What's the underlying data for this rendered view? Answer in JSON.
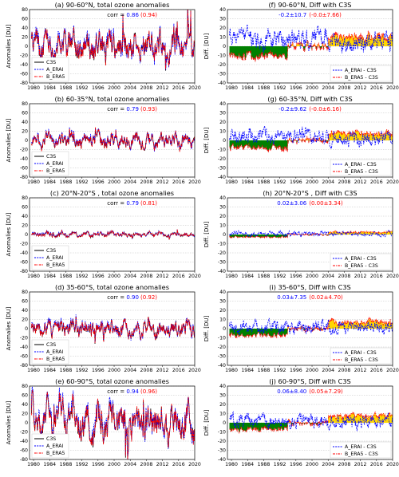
{
  "colors": {
    "c3s": "#000000",
    "erai": "#0000ff",
    "era5": "#ff0000",
    "pos_fill": "#ffd700",
    "neg_fill": "#008000",
    "grid": "#b0b0b0"
  },
  "panels_left_ylabel": "Anomalies [DU]",
  "panels_right_ylabel": "Diff. [DU]",
  "xticks": [
    "1980",
    "1984",
    "1988",
    "1992",
    "1996",
    "2000",
    "2004",
    "2008",
    "2012",
    "2016",
    "2020"
  ],
  "yticks": [
    "80",
    "60",
    "40",
    "20",
    "0",
    "-20",
    "-40",
    "-60",
    "-80"
  ],
  "yticks_diff": [
    "40",
    "30",
    "20",
    "10",
    "0",
    "-10",
    "-20",
    "-30",
    "-40"
  ],
  "legend_left": [
    "C3S",
    "A_ERAI",
    "B_ERA5"
  ],
  "legend_right": [
    "A_ERAI - C3S",
    "B_ERA5 - C3S"
  ],
  "corr_prefix": "corr =",
  "chart_data": [
    {
      "type": "line",
      "id": "a",
      "title": "(a) 90-60°N, total ozone anomalies",
      "ylabel": "Anomalies [DU]",
      "ylim": [
        -80,
        80
      ],
      "xlim": [
        1979,
        2020
      ],
      "corr_erai": "0.86",
      "corr_era5": "(0.94)",
      "series": [
        {
          "name": "C3S"
        },
        {
          "name": "A_ERAI"
        },
        {
          "name": "B_ERA5"
        }
      ]
    },
    {
      "type": "line",
      "id": "b",
      "title": "(b) 60-35°N, total ozone anomalies",
      "ylabel": "Anomalies [DU]",
      "ylim": [
        -80,
        80
      ],
      "xlim": [
        1979,
        2020
      ],
      "corr_erai": "0.79",
      "corr_era5": "(0.93)",
      "series": [
        {
          "name": "C3S"
        },
        {
          "name": "A_ERAI"
        },
        {
          "name": "B_ERA5"
        }
      ]
    },
    {
      "type": "line",
      "id": "c",
      "title": "(c) 20°N-20°S , total ozone anomalies",
      "ylabel": "Anomalies [DU]",
      "ylim": [
        -80,
        80
      ],
      "xlim": [
        1979,
        2020
      ],
      "corr_erai": "0.79",
      "corr_era5": "(0.81)",
      "series": [
        {
          "name": "C3S"
        },
        {
          "name": "A_ERAI"
        },
        {
          "name": "B_ERA5"
        }
      ]
    },
    {
      "type": "line",
      "id": "d",
      "title": "(d) 35-60°S, total ozone anomalies",
      "ylabel": "Anomalies [DU]",
      "ylim": [
        -80,
        80
      ],
      "xlim": [
        1979,
        2020
      ],
      "corr_erai": "0.90",
      "corr_era5": "(0.92)",
      "series": [
        {
          "name": "C3S"
        },
        {
          "name": "A_ERAI"
        },
        {
          "name": "B_ERA5"
        }
      ]
    },
    {
      "type": "line",
      "id": "e",
      "title": "(e) 60-90°S, total ozone anomalies",
      "ylabel": "Anomalies [DU]",
      "ylim": [
        -80,
        80
      ],
      "xlim": [
        1979,
        2020
      ],
      "corr_erai": "0.94",
      "corr_era5": "(0.96)",
      "series": [
        {
          "name": "C3S"
        },
        {
          "name": "A_ERAI"
        },
        {
          "name": "B_ERA5"
        }
      ]
    },
    {
      "type": "line",
      "id": "f",
      "title": "(f) 90-60°N, Diff with C3S",
      "ylabel": "Diff. [DU]",
      "ylim": [
        -40,
        40
      ],
      "xlim": [
        1979,
        2020
      ],
      "stat_erai": "-0.2±10.7",
      "stat_era5": "(-0.0±7.66)",
      "series": [
        {
          "name": "A_ERAI - C3S"
        },
        {
          "name": "B_ERA5 - C3S"
        }
      ]
    },
    {
      "type": "line",
      "id": "g",
      "title": "(g) 60-35°N, Diff with C3S",
      "ylabel": "Diff. [DU]",
      "ylim": [
        -40,
        40
      ],
      "xlim": [
        1979,
        2020
      ],
      "stat_erai": "-0.2±9.62",
      "stat_era5": "(-0.0±6.16)",
      "series": [
        {
          "name": "A_ERAI - C3S"
        },
        {
          "name": "B_ERA5 - C3S"
        }
      ]
    },
    {
      "type": "line",
      "id": "h",
      "title": "(h) 20°N-20°S , Diff with C3S",
      "ylabel": "Diff. [DU]",
      "ylim": [
        -40,
        40
      ],
      "xlim": [
        1979,
        2020
      ],
      "stat_erai": "0.02±3.06",
      "stat_era5": "(0.00±3.34)",
      "series": [
        {
          "name": "A_ERAI - C3S"
        },
        {
          "name": "B_ERA5 - C3S"
        }
      ]
    },
    {
      "type": "line",
      "id": "i",
      "title": "(i) 35-60°S, Diff with C3S",
      "ylabel": "Diff. [DU]",
      "ylim": [
        -40,
        40
      ],
      "xlim": [
        1979,
        2020
      ],
      "stat_erai": "0.03±7.35",
      "stat_era5": "(0.02±4.70)",
      "series": [
        {
          "name": "A_ERAI - C3S"
        },
        {
          "name": "B_ERA5 - C3S"
        }
      ]
    },
    {
      "type": "line",
      "id": "j",
      "title": "(j) 60-90°S, Diff with C3S",
      "ylabel": "Diff. [DU]",
      "ylim": [
        -40,
        40
      ],
      "xlim": [
        1979,
        2020
      ],
      "stat_erai": "0.06±8.40",
      "stat_era5": "(0.05±7.29)",
      "series": [
        {
          "name": "A_ERAI - C3S"
        },
        {
          "name": "B_ERA5 - C3S"
        }
      ]
    }
  ]
}
